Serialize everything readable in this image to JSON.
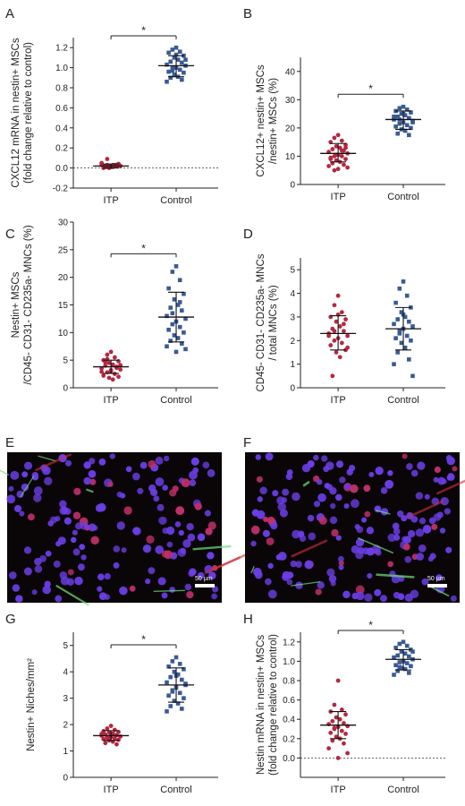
{
  "chart_data": [
    {
      "id": "A",
      "type": "scatter",
      "letter": "A",
      "ylabel": [
        "CXCL12 mRNA in nestin+ MSCs",
        "(fold change relative to control)"
      ],
      "ylim": [
        -0.2,
        1.3
      ],
      "yticks": [
        -0.2,
        0.0,
        0.2,
        0.4,
        0.6,
        0.8,
        1.0,
        1.2
      ],
      "tick_decimals": 1,
      "zero_line": true,
      "significance": "*",
      "categories": [
        "ITP",
        "Control"
      ],
      "groups": [
        {
          "name": "ITP",
          "color": "#b5283f",
          "mean": 0.02,
          "sd_low": 0.0,
          "sd_high": 0.04,
          "values": [
            0.02,
            0.01,
            0.03,
            0.02,
            0.04,
            0.0,
            0.01,
            0.02,
            0.03,
            0.05,
            0.02,
            0.01,
            0.03,
            0.02,
            0.0,
            0.04,
            0.02,
            0.03,
            0.01,
            0.02,
            0.03,
            0.02,
            0.01,
            0.09
          ]
        },
        {
          "name": "Control",
          "color": "#3a5a93",
          "mean": 1.02,
          "sd_low": 0.91,
          "sd_high": 1.12,
          "values": [
            1.2,
            1.18,
            1.16,
            1.15,
            1.12,
            1.1,
            1.08,
            1.06,
            1.05,
            1.03,
            1.02,
            1.0,
            1.0,
            0.98,
            0.96,
            0.95,
            0.93,
            0.91,
            0.9,
            0.88,
            0.86,
            1.08,
            1.13,
            0.97
          ]
        }
      ]
    },
    {
      "id": "B",
      "type": "scatter",
      "letter": "B",
      "ylabel": [
        "CXCL12+ nestin+ MSCs",
        "/nestin+ MSCs (%)"
      ],
      "ylim": [
        0,
        45
      ],
      "yticks": [
        0,
        10,
        20,
        30,
        40
      ],
      "tick_decimals": 0,
      "zero_line": false,
      "significance": "*",
      "categories": [
        "ITP",
        "Control"
      ],
      "groups": [
        {
          "name": "ITP",
          "color": "#b5283f",
          "mean": 11.0,
          "sd_low": 8.0,
          "sd_high": 14.5,
          "values": [
            17.5,
            16.5,
            15.5,
            15.0,
            14.0,
            13.5,
            13.0,
            12.5,
            12.0,
            11.5,
            11.0,
            10.5,
            10.0,
            10.0,
            9.5,
            9.0,
            8.5,
            8.0,
            7.5,
            7.0,
            6.5,
            6.0,
            5.5,
            5.0,
            12.0,
            9.0,
            13.0,
            10.5
          ]
        },
        {
          "name": "Control",
          "color": "#3a5a93",
          "mean": 23.0,
          "sd_low": 19.5,
          "sd_high": 26.0,
          "values": [
            27.5,
            27.0,
            26.5,
            26.0,
            25.5,
            25.0,
            24.5,
            24.0,
            23.5,
            23.0,
            22.5,
            22.0,
            21.5,
            21.0,
            20.5,
            20.0,
            19.5,
            19.0,
            18.0,
            17.5,
            24.0,
            22.0,
            25.0,
            23.0
          ]
        }
      ]
    },
    {
      "id": "C",
      "type": "scatter",
      "letter": "C",
      "ylabel": [
        "Nestin+ MSCs",
        "/CD45- CD31- CD235a- MNCs (%)"
      ],
      "ylim": [
        0,
        30
      ],
      "yticks": [
        0,
        5,
        10,
        15,
        20,
        25,
        30
      ],
      "tick_decimals": 0,
      "zero_line": false,
      "significance": "*",
      "categories": [
        "ITP",
        "Control"
      ],
      "groups": [
        {
          "name": "ITP",
          "color": "#b5283f",
          "mean": 3.8,
          "sd_low": 2.6,
          "sd_high": 5.0,
          "values": [
            6.5,
            6.0,
            5.5,
            5.0,
            4.8,
            4.5,
            4.2,
            4.0,
            3.8,
            3.5,
            3.3,
            3.0,
            2.8,
            2.5,
            2.2,
            2.0,
            1.8,
            1.5,
            4.6,
            3.6,
            2.9,
            4.1,
            3.2,
            5.2
          ]
        },
        {
          "name": "Control",
          "color": "#3a5a93",
          "mean": 12.8,
          "sd_low": 8.3,
          "sd_high": 17.3,
          "values": [
            22.0,
            21.0,
            19.5,
            18.0,
            17.0,
            16.0,
            15.0,
            14.5,
            14.0,
            13.0,
            12.5,
            12.0,
            11.5,
            11.0,
            10.5,
            10.0,
            9.5,
            9.0,
            8.5,
            8.0,
            7.5,
            7.0,
            6.5,
            13.5,
            15.5
          ]
        }
      ]
    },
    {
      "id": "D",
      "type": "scatter",
      "letter": "D",
      "ylabel": [
        "CD45- CD31- CD235a- MNCs",
        "/ total MNCs (%)"
      ],
      "ylim": [
        0,
        5.5
      ],
      "yticks": [
        0,
        1,
        2,
        3,
        4,
        5
      ],
      "tick_decimals": 0,
      "zero_line": false,
      "significance": "",
      "categories": [
        "ITP",
        "Control"
      ],
      "groups": [
        {
          "name": "ITP",
          "color": "#b5283f",
          "mean": 2.3,
          "sd_low": 1.6,
          "sd_high": 3.05,
          "values": [
            3.9,
            3.5,
            3.2,
            3.0,
            2.9,
            2.8,
            2.6,
            2.5,
            2.4,
            2.3,
            2.2,
            2.1,
            2.0,
            1.9,
            1.8,
            1.6,
            1.5,
            1.3,
            0.5,
            2.7,
            2.2,
            1.7,
            3.1,
            2.4
          ]
        },
        {
          "name": "Control",
          "color": "#3a5a93",
          "mean": 2.5,
          "sd_low": 1.6,
          "sd_high": 3.4,
          "values": [
            4.5,
            4.2,
            3.9,
            3.6,
            3.4,
            3.2,
            3.0,
            2.9,
            2.8,
            2.7,
            2.6,
            2.5,
            2.4,
            2.2,
            2.1,
            2.0,
            1.9,
            1.7,
            1.5,
            1.2,
            1.0,
            0.5,
            3.1,
            2.3
          ]
        }
      ]
    },
    {
      "id": "G",
      "type": "scatter",
      "letter": "G",
      "ylabel": [
        "Nestin+ Niches/mm²"
      ],
      "ylim": [
        0,
        5.5
      ],
      "yticks": [
        0,
        1,
        2,
        3,
        4,
        5
      ],
      "tick_decimals": 0,
      "zero_line": false,
      "significance": "*",
      "categories": [
        "ITP",
        "Control"
      ],
      "groups": [
        {
          "name": "ITP",
          "color": "#b5283f",
          "mean": 1.58,
          "sd_low": 1.4,
          "sd_high": 1.77,
          "values": [
            1.95,
            1.85,
            1.8,
            1.75,
            1.72,
            1.7,
            1.66,
            1.62,
            1.6,
            1.58,
            1.55,
            1.52,
            1.5,
            1.48,
            1.45,
            1.42,
            1.4,
            1.35,
            1.3,
            1.25,
            1.65,
            1.55,
            1.6,
            1.5
          ]
        },
        {
          "name": "Control",
          "color": "#3a5a93",
          "mean": 3.5,
          "sd_low": 2.85,
          "sd_high": 4.15,
          "values": [
            4.55,
            4.4,
            4.3,
            4.2,
            4.1,
            4.0,
            3.9,
            3.8,
            3.7,
            3.6,
            3.5,
            3.4,
            3.3,
            3.2,
            3.1,
            3.0,
            2.9,
            2.8,
            2.7,
            2.6,
            2.5,
            3.55,
            3.85,
            3.25
          ]
        }
      ]
    },
    {
      "id": "H",
      "type": "scatter",
      "letter": "H",
      "ylabel": [
        "Nestin mRNA in nestin+ MSCs",
        "(fold change relative to control)"
      ],
      "ylim": [
        -0.2,
        1.3
      ],
      "yticks": [
        0.0,
        0.2,
        0.4,
        0.6,
        0.8,
        1.0,
        1.2
      ],
      "tick_decimals": 1,
      "zero_line": true,
      "significance": "*",
      "categories": [
        "ITP",
        "Control"
      ],
      "groups": [
        {
          "name": "ITP",
          "color": "#b5283f",
          "mean": 0.34,
          "sd_low": 0.2,
          "sd_high": 0.48,
          "values": [
            0.8,
            0.55,
            0.5,
            0.48,
            0.45,
            0.42,
            0.4,
            0.38,
            0.36,
            0.35,
            0.33,
            0.32,
            0.3,
            0.28,
            0.26,
            0.25,
            0.22,
            0.2,
            0.18,
            0.15,
            0.1,
            0.05,
            0.0,
            0.31
          ]
        },
        {
          "name": "Control",
          "color": "#3a5a93",
          "mean": 1.02,
          "sd_low": 0.91,
          "sd_high": 1.12,
          "values": [
            1.2,
            1.18,
            1.16,
            1.14,
            1.12,
            1.1,
            1.08,
            1.06,
            1.05,
            1.04,
            1.02,
            1.0,
            0.99,
            0.98,
            0.96,
            0.95,
            0.93,
            0.92,
            0.9,
            0.88,
            0.86,
            1.1,
            1.0,
            0.94
          ]
        }
      ]
    }
  ],
  "images": [
    {
      "id": "E",
      "letter": "E",
      "scale_bar": "50 µm"
    },
    {
      "id": "F",
      "letter": "F",
      "scale_bar": "50 µm"
    }
  ]
}
